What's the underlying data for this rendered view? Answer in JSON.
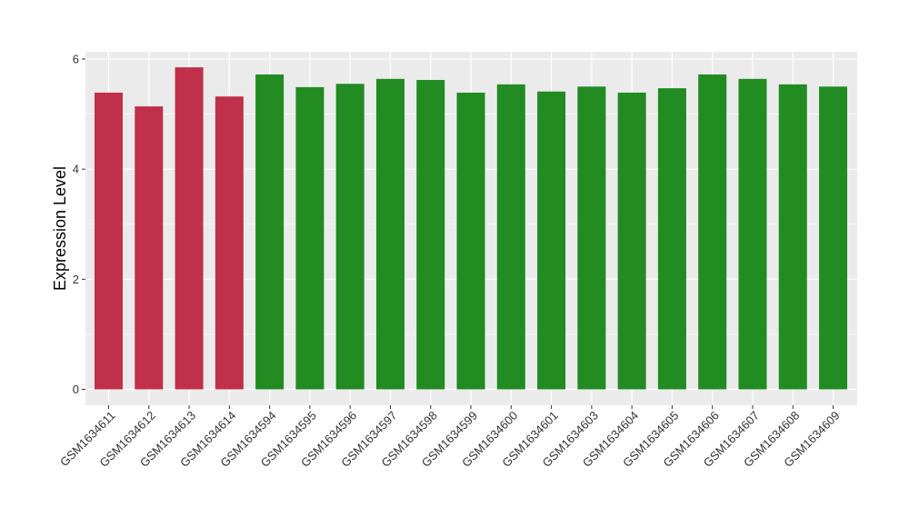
{
  "chart_data": {
    "type": "bar",
    "title": "",
    "xlabel": "",
    "ylabel": "Expression Level",
    "ylim": [
      0,
      6.3
    ],
    "yticks": [
      0,
      2,
      4,
      6
    ],
    "grid": true,
    "legend": "none",
    "colors": {
      "group_a": "#c0304a",
      "group_b": "#228b22",
      "panel_background": "#ebebeb",
      "gridline": "#ffffff"
    },
    "categories": [
      "GSM1634611",
      "GSM1634612",
      "GSM1634613",
      "GSM1634614",
      "GSM1634594",
      "GSM1634595",
      "GSM1634596",
      "GSM1634597",
      "GSM1634598",
      "GSM1634599",
      "GSM1634600",
      "GSM1634601",
      "GSM1634603",
      "GSM1634604",
      "GSM1634605",
      "GSM1634606",
      "GSM1634607",
      "GSM1634608",
      "GSM1634609"
    ],
    "values": [
      5.39,
      5.14,
      5.85,
      5.32,
      5.72,
      5.49,
      5.55,
      5.64,
      5.62,
      5.39,
      5.54,
      5.41,
      5.5,
      5.39,
      5.47,
      5.72,
      5.64,
      5.54,
      5.5
    ],
    "groups": [
      "group_a",
      "group_a",
      "group_a",
      "group_a",
      "group_b",
      "group_b",
      "group_b",
      "group_b",
      "group_b",
      "group_b",
      "group_b",
      "group_b",
      "group_b",
      "group_b",
      "group_b",
      "group_b",
      "group_b",
      "group_b",
      "group_b"
    ]
  }
}
